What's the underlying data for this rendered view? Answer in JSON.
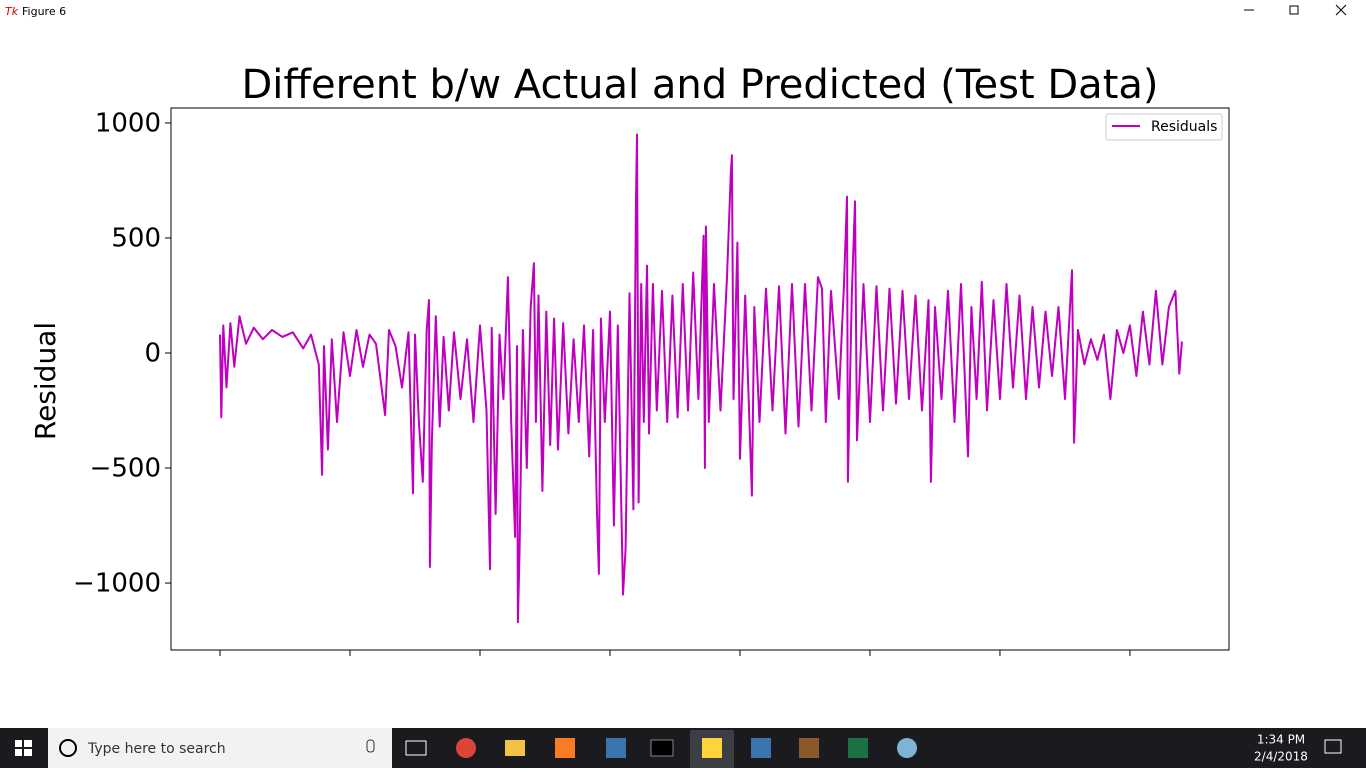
{
  "window": {
    "title": "Figure 6"
  },
  "chart_data": {
    "type": "line",
    "title": "Different b/w Actual and Predicted (Test Data)",
    "y_label": "Residual",
    "x": [
      0,
      10,
      25,
      50,
      80,
      110,
      150,
      200,
      260,
      330,
      400,
      480,
      560,
      640,
      700,
      760,
      785,
      800,
      830,
      860,
      900,
      950,
      1000,
      1050,
      1100,
      1150,
      1200,
      1270,
      1300,
      1350,
      1400,
      1450,
      1485,
      1500,
      1530,
      1560,
      1590,
      1608,
      1615,
      1630,
      1660,
      1690,
      1720,
      1760,
      1800,
      1850,
      1900,
      1950,
      2000,
      2050,
      2077,
      2090,
      2120,
      2150,
      2180,
      2215,
      2240,
      2270,
      2285,
      2292,
      2305,
      2330,
      2360,
      2390,
      2415,
      2430,
      2450,
      2480,
      2510,
      2540,
      2570,
      2600,
      2640,
      2680,
      2720,
      2760,
      2800,
      2840,
      2870,
      2900,
      2915,
      2930,
      2960,
      3000,
      3030,
      3060,
      3100,
      3120,
      3150,
      3180,
      3200,
      3208,
      3220,
      3240,
      3260,
      3285,
      3300,
      3330,
      3360,
      3400,
      3440,
      3480,
      3520,
      3560,
      3600,
      3640,
      3680,
      3720,
      3730,
      3738,
      3760,
      3800,
      3850,
      3900,
      3930,
      3938,
      3950,
      3980,
      4000,
      4040,
      4092,
      4110,
      4150,
      4200,
      4250,
      4300,
      4350,
      4400,
      4450,
      4500,
      4550,
      4600,
      4631,
      4660,
      4700,
      4760,
      4800,
      4823,
      4830,
      4860,
      4885,
      4900,
      4950,
      5000,
      5050,
      5100,
      5150,
      5200,
      5250,
      5300,
      5350,
      5400,
      5450,
      5469,
      5500,
      5550,
      5600,
      5650,
      5700,
      5754,
      5780,
      5820,
      5860,
      5900,
      5950,
      6000,
      6050,
      6100,
      6150,
      6200,
      6250,
      6300,
      6350,
      6400,
      6450,
      6500,
      6554,
      6570,
      6600,
      6650,
      6700,
      6750,
      6800,
      6850,
      6900,
      6950,
      7000,
      7050,
      7100,
      7150,
      7200,
      7250,
      7300,
      7350,
      7380,
      7400
    ],
    "series": [
      {
        "name": "Residuals",
        "color": "#bf00bf",
        "values": [
          80,
          -280,
          120,
          -150,
          130,
          -60,
          160,
          40,
          110,
          60,
          100,
          70,
          90,
          20,
          80,
          -50,
          -530,
          30,
          -420,
          60,
          -300,
          90,
          -100,
          100,
          -60,
          80,
          40,
          -270,
          100,
          30,
          -150,
          90,
          -610,
          80,
          -300,
          -560,
          100,
          230,
          -930,
          -380,
          160,
          -320,
          70,
          -250,
          90,
          -200,
          60,
          -300,
          120,
          -250,
          -940,
          110,
          -700,
          80,
          -200,
          330,
          -300,
          -800,
          30,
          -1170,
          -850,
          100,
          -500,
          200,
          390,
          -300,
          250,
          -600,
          180,
          -400,
          150,
          -420,
          130,
          -350,
          60,
          -300,
          120,
          -450,
          100,
          -700,
          -960,
          150,
          -300,
          180,
          -750,
          120,
          -1050,
          -850,
          260,
          -680,
          670,
          950,
          -650,
          300,
          -300,
          380,
          -350,
          300,
          -250,
          270,
          -300,
          250,
          -280,
          300,
          -250,
          350,
          -200,
          510,
          -500,
          550,
          -300,
          300,
          -250,
          330,
          790,
          860,
          -200,
          480,
          -460,
          250,
          -620,
          200,
          -300,
          280,
          -250,
          290,
          -350,
          300,
          -320,
          300,
          -250,
          330,
          280,
          -300,
          270,
          -200,
          300,
          680,
          -560,
          250,
          660,
          -380,
          300,
          -300,
          290,
          -250,
          280,
          -220,
          270,
          -200,
          250,
          -250,
          230,
          -560,
          200,
          -200,
          270,
          -300,
          300,
          -450,
          200,
          -200,
          310,
          -250,
          230,
          -200,
          300,
          -150,
          250,
          -200,
          200,
          -150,
          180,
          -100,
          200,
          -200,
          360,
          -390,
          100,
          -50,
          60,
          -30,
          80,
          -200,
          100,
          0,
          120,
          -100,
          180,
          -50,
          270,
          -50,
          200,
          270,
          -90,
          50
        ]
      }
    ],
    "xlim": [
      -377,
      7762
    ],
    "xticks": [
      0,
      1000,
      2000,
      3000,
      4000,
      5000,
      6000,
      7000
    ],
    "ylim": [
      -1291,
      1065
    ],
    "yticks": [
      {
        "value": -1000,
        "label": "−1000"
      },
      {
        "value": -500,
        "label": "−500"
      },
      0,
      500,
      1000
    ],
    "legend": "upper right"
  },
  "taskbar": {
    "search": "Type here to search",
    "time": "1:34 PM",
    "date": "2/4/2018"
  }
}
